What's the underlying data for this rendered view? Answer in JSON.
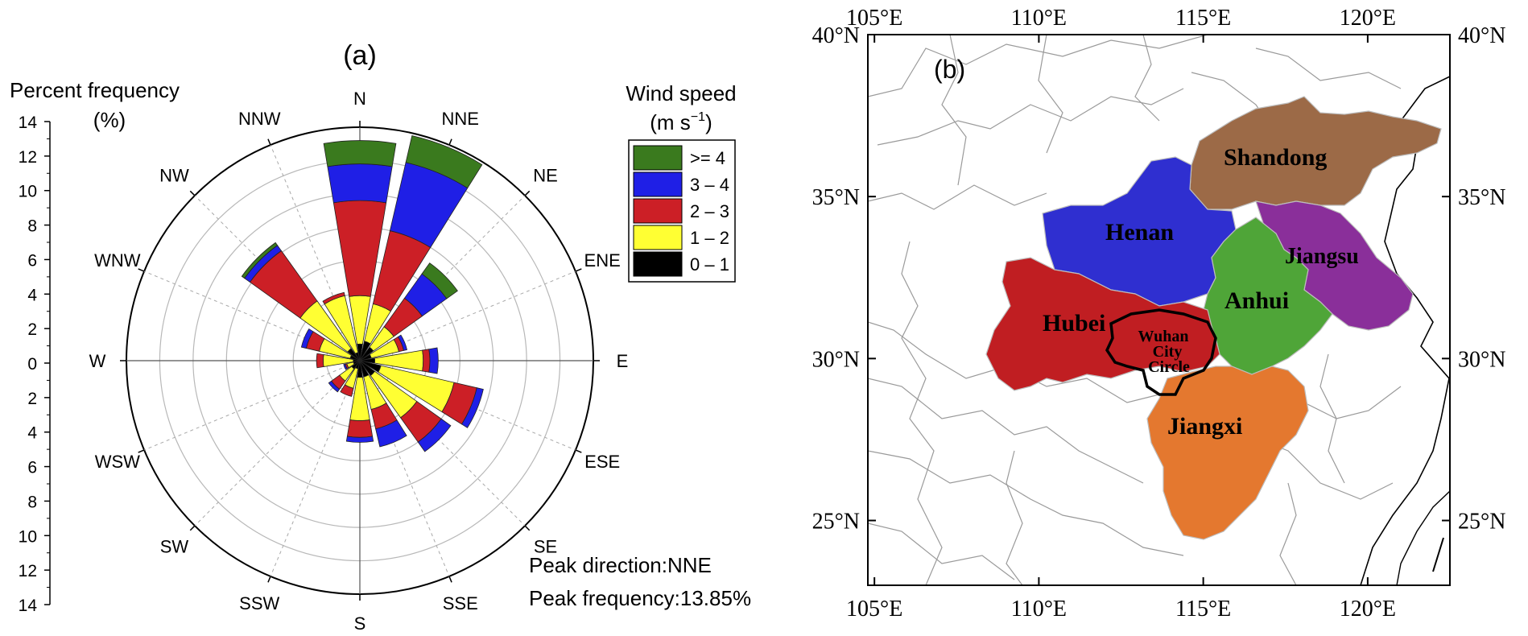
{
  "chart_data": [
    {
      "type": "wind-rose",
      "panel_label": "(a)",
      "radial_axis": {
        "title_line1": "Percent frequency",
        "title_line2": "(%)",
        "range": [
          0,
          14
        ],
        "ring_step": 2,
        "ticks": [
          "14",
          "12",
          "10",
          "8",
          "6",
          "4",
          "2",
          "0",
          "2",
          "4",
          "6",
          "8",
          "10",
          "12",
          "14"
        ]
      },
      "directions": [
        "N",
        "NNE",
        "NE",
        "ENE",
        "E",
        "ESE",
        "SE",
        "SSE",
        "S",
        "SSW",
        "SW",
        "WSW",
        "W",
        "WNW",
        "NW",
        "NNW"
      ],
      "legend": {
        "title_line1": "Wind speed",
        "title_line2": "(m s",
        "title_sup": "−1",
        "title_close": ")",
        "placement": "top-right",
        "bins": [
          {
            "label": ">= 4",
            "color": "#3a7a1e"
          },
          {
            "label": "3 – 4",
            "color": "#1f1fe6"
          },
          {
            "label": "2 – 3",
            "color": "#cc1f26"
          },
          {
            "label": "1 – 2",
            "color": "#ffff33"
          },
          {
            "label": "0 – 1",
            "color": "#000000"
          }
        ]
      },
      "series_cumulative_note": "cumulative percent per direction for bins 0-1, 1-2, 2-3, 3-4, >=4",
      "cumulative": [
        [
          1.0,
          3.9,
          9.6,
          11.8,
          13.2
        ],
        [
          1.2,
          3.5,
          8.0,
          12.2,
          13.85
        ],
        [
          1.0,
          2.5,
          4.6,
          6.4,
          7.2
        ],
        [
          0.7,
          2.4,
          2.7,
          2.9,
          2.9
        ],
        [
          0.9,
          3.8,
          4.2,
          4.7,
          4.7
        ],
        [
          1.3,
          5.8,
          7.2,
          7.6,
          7.6
        ],
        [
          1.1,
          4.2,
          6.0,
          6.7,
          6.7
        ],
        [
          1.0,
          3.0,
          4.2,
          5.3,
          5.3
        ],
        [
          1.0,
          3.6,
          4.6,
          4.9,
          4.9
        ],
        [
          0.5,
          1.7,
          2.2,
          2.2,
          2.2
        ],
        [
          0.6,
          1.5,
          2.1,
          2.3,
          2.3
        ],
        [
          0.4,
          0.8,
          0.9,
          1.0,
          1.0
        ],
        [
          0.4,
          2.2,
          2.6,
          2.6,
          2.6
        ],
        [
          0.6,
          2.5,
          3.3,
          3.6,
          3.6
        ],
        [
          0.9,
          4.4,
          8.1,
          8.5,
          8.7
        ],
        [
          0.5,
          4.0,
          4.2,
          4.2,
          4.2
        ]
      ],
      "annotation_line1": "Peak direction:NNE",
      "annotation_line2": "Peak frequency:13.85%"
    },
    {
      "type": "map",
      "panel_label": "(b)",
      "lon_ticks": [
        "105°E",
        "110°E",
        "115°E",
        "120°E"
      ],
      "lon_values": [
        105,
        110,
        115,
        120
      ],
      "lat_ticks": [
        "25°N",
        "30°N",
        "35°N",
        "40°N"
      ],
      "lat_values": [
        25,
        30,
        35,
        40
      ],
      "extent": {
        "lon": [
          104.8,
          122.5
        ],
        "lat": [
          23.0,
          40.0
        ]
      },
      "regions": [
        {
          "name": "Shandong",
          "color": "#9c6a47"
        },
        {
          "name": "Henan",
          "color": "#2f2fd0"
        },
        {
          "name": "Jiangsu",
          "color": "#8a2f9a"
        },
        {
          "name": "Anhui",
          "color": "#4fa538"
        },
        {
          "name": "Hubei",
          "color": "#c01e22"
        },
        {
          "name": "Jiangxi",
          "color": "#e4782f"
        }
      ],
      "highlight": {
        "line1": "Wuhan",
        "line2": "City",
        "line3": "Circle"
      }
    }
  ]
}
